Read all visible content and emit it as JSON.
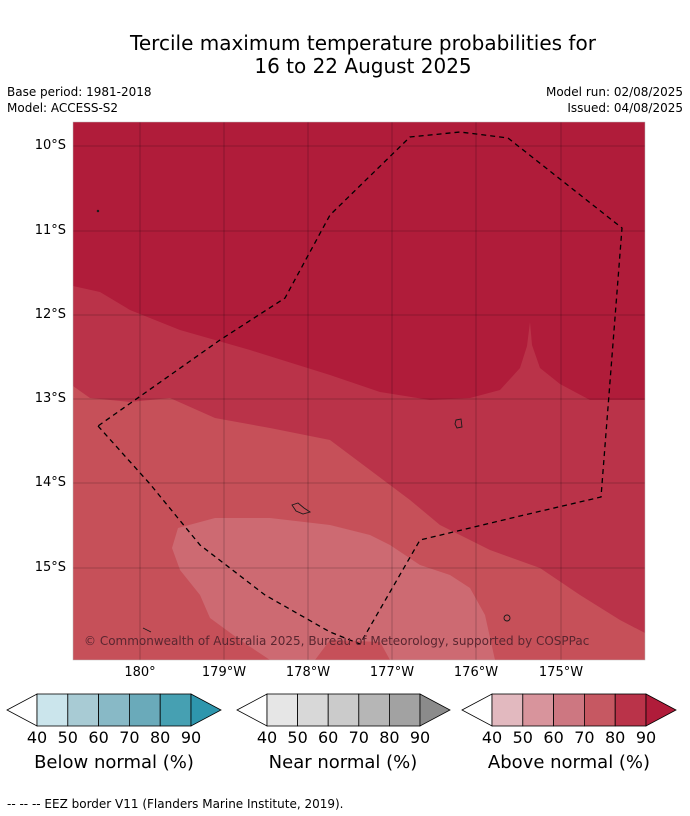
{
  "title": {
    "line1": "Tercile maximum temperature probabilities for",
    "line2": "16 to 22 August 2025"
  },
  "meta": {
    "base_period": "Base period: 1981-2018",
    "model": "Model: ACCESS-S2",
    "model_run": "Model run: 02/08/2025",
    "issued": "Issued: 04/08/2025"
  },
  "map": {
    "y_ticks": [
      "10°S",
      "11°S",
      "12°S",
      "13°S",
      "14°S",
      "15°S"
    ],
    "x_ticks": [
      "180°",
      "179°W",
      "178°W",
      "177°W",
      "176°W",
      "175°W"
    ],
    "copyright": "© Commonwealth of Australia 2025, Bureau of Meteorology, supported by COSPPac",
    "colors": {
      "above_90": "#b01c3a",
      "above_80": "#ba3349",
      "above_70": "#c65059",
      "above_60": "#cd6a72",
      "eez_border": "#000000"
    }
  },
  "legend": {
    "below": {
      "label": "Below normal (%)",
      "ticks": [
        "40",
        "50",
        "60",
        "70",
        "80",
        "90"
      ],
      "colors": [
        "#ffffff",
        "#cbe5ec",
        "#a8cbd4",
        "#88b9c6",
        "#6aaaba",
        "#46a0b2",
        "#2e96ad"
      ]
    },
    "near": {
      "label": "Near normal (%)",
      "ticks": [
        "40",
        "50",
        "60",
        "70",
        "80",
        "90"
      ],
      "colors": [
        "#ffffff",
        "#e6e6e6",
        "#d8d8d8",
        "#cbcbcb",
        "#b6b6b6",
        "#a2a2a2",
        "#8b8b8b"
      ]
    },
    "above": {
      "label": "Above normal (%)",
      "ticks": [
        "40",
        "50",
        "60",
        "70",
        "80",
        "90"
      ],
      "colors": [
        "#ffffff",
        "#e2b9bf",
        "#d8949c",
        "#cd7781",
        "#c65862",
        "#ba3349",
        "#b01c3a"
      ]
    }
  },
  "footer": "--  --  -- EEZ border V11 (Flanders Marine Institute, 2019)."
}
